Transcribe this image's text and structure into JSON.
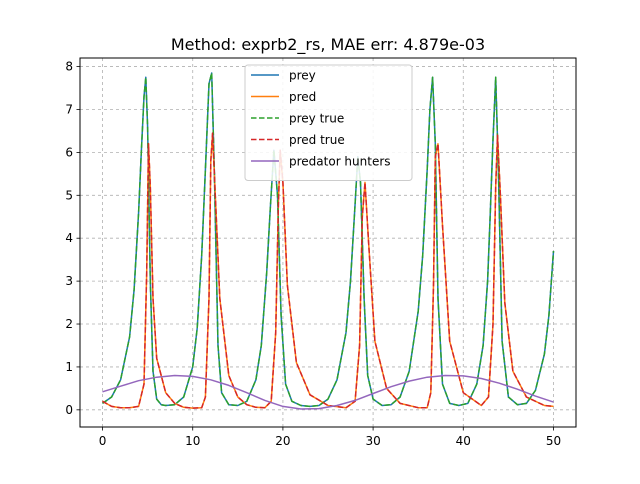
{
  "chart_data": {
    "type": "line",
    "title": "Method: exprb2_rs, MAE err: 4.879e-03",
    "xlabel": "",
    "ylabel": "",
    "xlim": [
      -2.5,
      52.5
    ],
    "ylim": [
      -0.4,
      8.2
    ],
    "xticks": [
      0,
      10,
      20,
      30,
      40,
      50
    ],
    "xtick_labels": [
      "0",
      "10",
      "20",
      "30",
      "40",
      "50"
    ],
    "yticks": [
      0,
      1,
      2,
      3,
      4,
      5,
      6,
      7,
      8
    ],
    "ytick_labels": [
      "0",
      "1",
      "2",
      "3",
      "4",
      "5",
      "6",
      "7",
      "8"
    ],
    "grid": true,
    "legend_position": "upper center",
    "series": [
      {
        "name": "prey",
        "color": "#1f77b4",
        "style": "solid",
        "x": [
          0,
          1,
          2,
          3,
          3.5,
          4,
          4.3,
          4.6,
          4.8,
          5.0,
          5.3,
          5.6,
          6,
          6.5,
          7,
          8,
          9,
          10,
          10.5,
          11,
          11.4,
          11.8,
          12.1,
          12.4,
          12.8,
          13.2,
          14,
          15,
          16,
          17,
          17.6,
          18.2,
          18.6,
          19.0,
          19.4,
          19.8,
          20.3,
          21,
          22,
          23,
          24,
          25,
          26,
          27,
          27.5,
          28,
          28.3,
          28.6,
          29.0,
          29.4,
          30,
          31,
          32,
          33,
          34,
          35,
          35.5,
          36,
          36.3,
          36.6,
          36.9,
          37.2,
          37.7,
          38.5,
          39.5,
          40.5,
          41.5,
          42.2,
          42.7,
          43.0,
          43.3,
          43.6,
          43.9,
          44.3,
          45,
          46,
          47,
          48,
          49,
          49.5,
          50
        ],
        "y": [
          0.15,
          0.3,
          0.7,
          1.7,
          2.8,
          4.6,
          6.0,
          7.3,
          7.75,
          6.6,
          3.0,
          0.9,
          0.25,
          0.12,
          0.1,
          0.12,
          0.3,
          1.0,
          1.9,
          3.6,
          5.6,
          7.6,
          7.85,
          5.5,
          1.5,
          0.4,
          0.12,
          0.1,
          0.2,
          0.7,
          1.5,
          3.2,
          4.7,
          6.05,
          5.0,
          2.2,
          0.6,
          0.2,
          0.1,
          0.08,
          0.1,
          0.25,
          0.7,
          1.8,
          3.0,
          4.8,
          5.9,
          5.3,
          2.6,
          0.8,
          0.25,
          0.1,
          0.12,
          0.3,
          0.9,
          2.3,
          3.6,
          5.6,
          7.0,
          7.75,
          6.2,
          2.6,
          0.6,
          0.15,
          0.1,
          0.15,
          0.6,
          1.5,
          3.0,
          4.6,
          6.3,
          7.75,
          5.6,
          1.6,
          0.3,
          0.12,
          0.15,
          0.45,
          1.3,
          2.2,
          3.7
        ]
      },
      {
        "name": "pred",
        "color": "#ff7f0e",
        "style": "solid",
        "x": [
          0,
          1,
          2,
          3,
          4,
          4.6,
          4.9,
          5.1,
          5.3,
          5.6,
          6,
          7,
          8,
          9,
          10,
          11,
          11.4,
          11.8,
          12.0,
          12.2,
          12.5,
          13,
          14,
          15,
          16,
          17,
          18,
          18.7,
          19.2,
          19.5,
          19.7,
          20.0,
          20.5,
          21.5,
          23,
          25,
          27,
          28.0,
          28.5,
          28.8,
          29.1,
          29.5,
          30.2,
          31.5,
          33,
          35,
          36,
          36.4,
          36.7,
          36.9,
          37.2,
          37.7,
          38.5,
          40,
          42,
          42.8,
          43.3,
          43.6,
          43.8,
          44.1,
          44.6,
          45.5,
          47,
          49,
          50
        ],
        "y": [
          0.2,
          0.08,
          0.05,
          0.05,
          0.08,
          0.6,
          3.2,
          6.2,
          5.2,
          2.6,
          1.2,
          0.4,
          0.15,
          0.06,
          0.04,
          0.05,
          0.3,
          2.6,
          5.8,
          6.45,
          5.0,
          2.6,
          0.8,
          0.3,
          0.12,
          0.06,
          0.05,
          0.2,
          1.8,
          4.8,
          6.05,
          5.3,
          2.9,
          1.1,
          0.35,
          0.1,
          0.05,
          0.2,
          1.5,
          4.5,
          5.3,
          3.9,
          1.6,
          0.5,
          0.15,
          0.05,
          0.05,
          0.4,
          2.9,
          5.9,
          6.2,
          4.3,
          1.6,
          0.4,
          0.1,
          0.3,
          2.0,
          5.2,
          6.4,
          5.1,
          2.5,
          0.9,
          0.3,
          0.1,
          0.08
        ]
      },
      {
        "name": "prey true",
        "color": "#2ca02c",
        "style": "dashed",
        "x": [
          0,
          1,
          2,
          3,
          3.5,
          4,
          4.3,
          4.6,
          4.8,
          5.0,
          5.3,
          5.6,
          6,
          6.5,
          7,
          8,
          9,
          10,
          10.5,
          11,
          11.4,
          11.8,
          12.1,
          12.4,
          12.8,
          13.2,
          14,
          15,
          16,
          17,
          17.6,
          18.2,
          18.6,
          19.0,
          19.4,
          19.8,
          20.3,
          21,
          22,
          23,
          24,
          25,
          26,
          27,
          27.5,
          28,
          28.3,
          28.6,
          29.0,
          29.4,
          30,
          31,
          32,
          33,
          34,
          35,
          35.5,
          36,
          36.3,
          36.6,
          36.9,
          37.2,
          37.7,
          38.5,
          39.5,
          40.5,
          41.5,
          42.2,
          42.7,
          43.0,
          43.3,
          43.6,
          43.9,
          44.3,
          45,
          46,
          47,
          48,
          49,
          49.5,
          50
        ],
        "y": [
          0.15,
          0.3,
          0.7,
          1.7,
          2.8,
          4.6,
          6.0,
          7.3,
          7.75,
          6.6,
          3.0,
          0.9,
          0.25,
          0.12,
          0.1,
          0.12,
          0.3,
          1.0,
          1.9,
          3.6,
          5.6,
          7.6,
          7.85,
          5.5,
          1.5,
          0.4,
          0.12,
          0.1,
          0.2,
          0.7,
          1.5,
          3.2,
          4.7,
          6.05,
          5.0,
          2.2,
          0.6,
          0.2,
          0.1,
          0.08,
          0.1,
          0.25,
          0.7,
          1.8,
          3.0,
          4.8,
          5.9,
          5.3,
          2.6,
          0.8,
          0.25,
          0.1,
          0.12,
          0.3,
          0.9,
          2.3,
          3.6,
          5.6,
          7.0,
          7.75,
          6.2,
          2.6,
          0.6,
          0.15,
          0.1,
          0.15,
          0.6,
          1.5,
          3.0,
          4.6,
          6.3,
          7.75,
          5.6,
          1.6,
          0.3,
          0.12,
          0.15,
          0.45,
          1.3,
          2.2,
          3.7
        ]
      },
      {
        "name": "pred true",
        "color": "#d62728",
        "style": "dashed",
        "x": [
          0,
          1,
          2,
          3,
          4,
          4.6,
          4.9,
          5.1,
          5.3,
          5.6,
          6,
          7,
          8,
          9,
          10,
          11,
          11.4,
          11.8,
          12.0,
          12.2,
          12.5,
          13,
          14,
          15,
          16,
          17,
          18,
          18.7,
          19.2,
          19.5,
          19.7,
          20.0,
          20.5,
          21.5,
          23,
          25,
          27,
          28.0,
          28.5,
          28.8,
          29.1,
          29.5,
          30.2,
          31.5,
          33,
          35,
          36,
          36.4,
          36.7,
          36.9,
          37.2,
          37.7,
          38.5,
          40,
          42,
          42.8,
          43.3,
          43.6,
          43.8,
          44.1,
          44.6,
          45.5,
          47,
          49,
          50
        ],
        "y": [
          0.2,
          0.08,
          0.05,
          0.05,
          0.08,
          0.6,
          3.2,
          6.2,
          5.2,
          2.6,
          1.2,
          0.4,
          0.15,
          0.06,
          0.04,
          0.05,
          0.3,
          2.6,
          5.8,
          6.45,
          5.0,
          2.6,
          0.8,
          0.3,
          0.12,
          0.06,
          0.05,
          0.2,
          1.8,
          4.8,
          6.05,
          5.3,
          2.9,
          1.1,
          0.35,
          0.1,
          0.05,
          0.2,
          1.5,
          4.5,
          5.3,
          3.9,
          1.6,
          0.5,
          0.15,
          0.05,
          0.05,
          0.4,
          2.9,
          5.9,
          6.2,
          4.3,
          1.6,
          0.4,
          0.1,
          0.3,
          2.0,
          5.2,
          6.4,
          5.1,
          2.5,
          0.9,
          0.3,
          0.1,
          0.08
        ]
      },
      {
        "name": "predator hunters",
        "color": "#9467bd",
        "style": "solid",
        "x": [
          0,
          2,
          4,
          6,
          8,
          10,
          12,
          14,
          16,
          18,
          20,
          22,
          24,
          26,
          28,
          30,
          32,
          34,
          36,
          38,
          40,
          42,
          44,
          46,
          48,
          50
        ],
        "y": [
          0.42,
          0.55,
          0.68,
          0.76,
          0.8,
          0.78,
          0.7,
          0.57,
          0.4,
          0.22,
          0.08,
          0.02,
          0.03,
          0.1,
          0.22,
          0.38,
          0.54,
          0.67,
          0.76,
          0.8,
          0.79,
          0.73,
          0.62,
          0.48,
          0.32,
          0.18
        ]
      }
    ]
  }
}
